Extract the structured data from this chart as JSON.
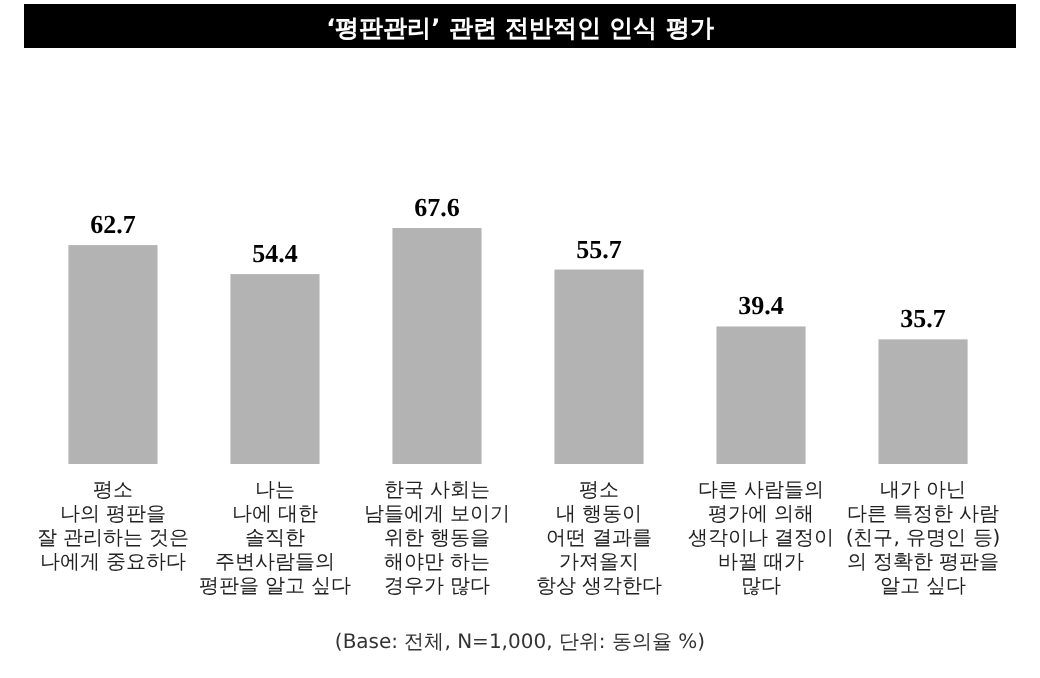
{
  "chart_data": {
    "type": "bar",
    "title": "‘평판관리’ 관련 전반적인 인식 평가",
    "categories": [
      "평소\n나의 평판을\n잘 관리하는 것은\n나에게 중요하다",
      "나는\n나에 대한\n솔직한\n주변사람들의\n평판을 알고 싶다",
      "한국 사회는\n남들에게 보이기\n위한 행동을\n해야만 하는\n경우가 많다",
      "평소\n내 행동이\n어떤 결과를\n가져올지\n항상 생각한다",
      "다른 사람들의\n평가에 의해\n생각이나 결정이\n바뀔 때가\n많다",
      "내가 아닌\n다른 특정한 사람\n(친구, 유명인 등)\n의 정확한 평판을\n알고 싶다"
    ],
    "values": [
      62.7,
      54.4,
      67.6,
      55.7,
      39.4,
      35.7
    ],
    "color": "#b3b3b3",
    "data_labels": true,
    "annotations": [
      "(Base: 전체, N=1,000, 단위: 동의율 %)"
    ]
  }
}
